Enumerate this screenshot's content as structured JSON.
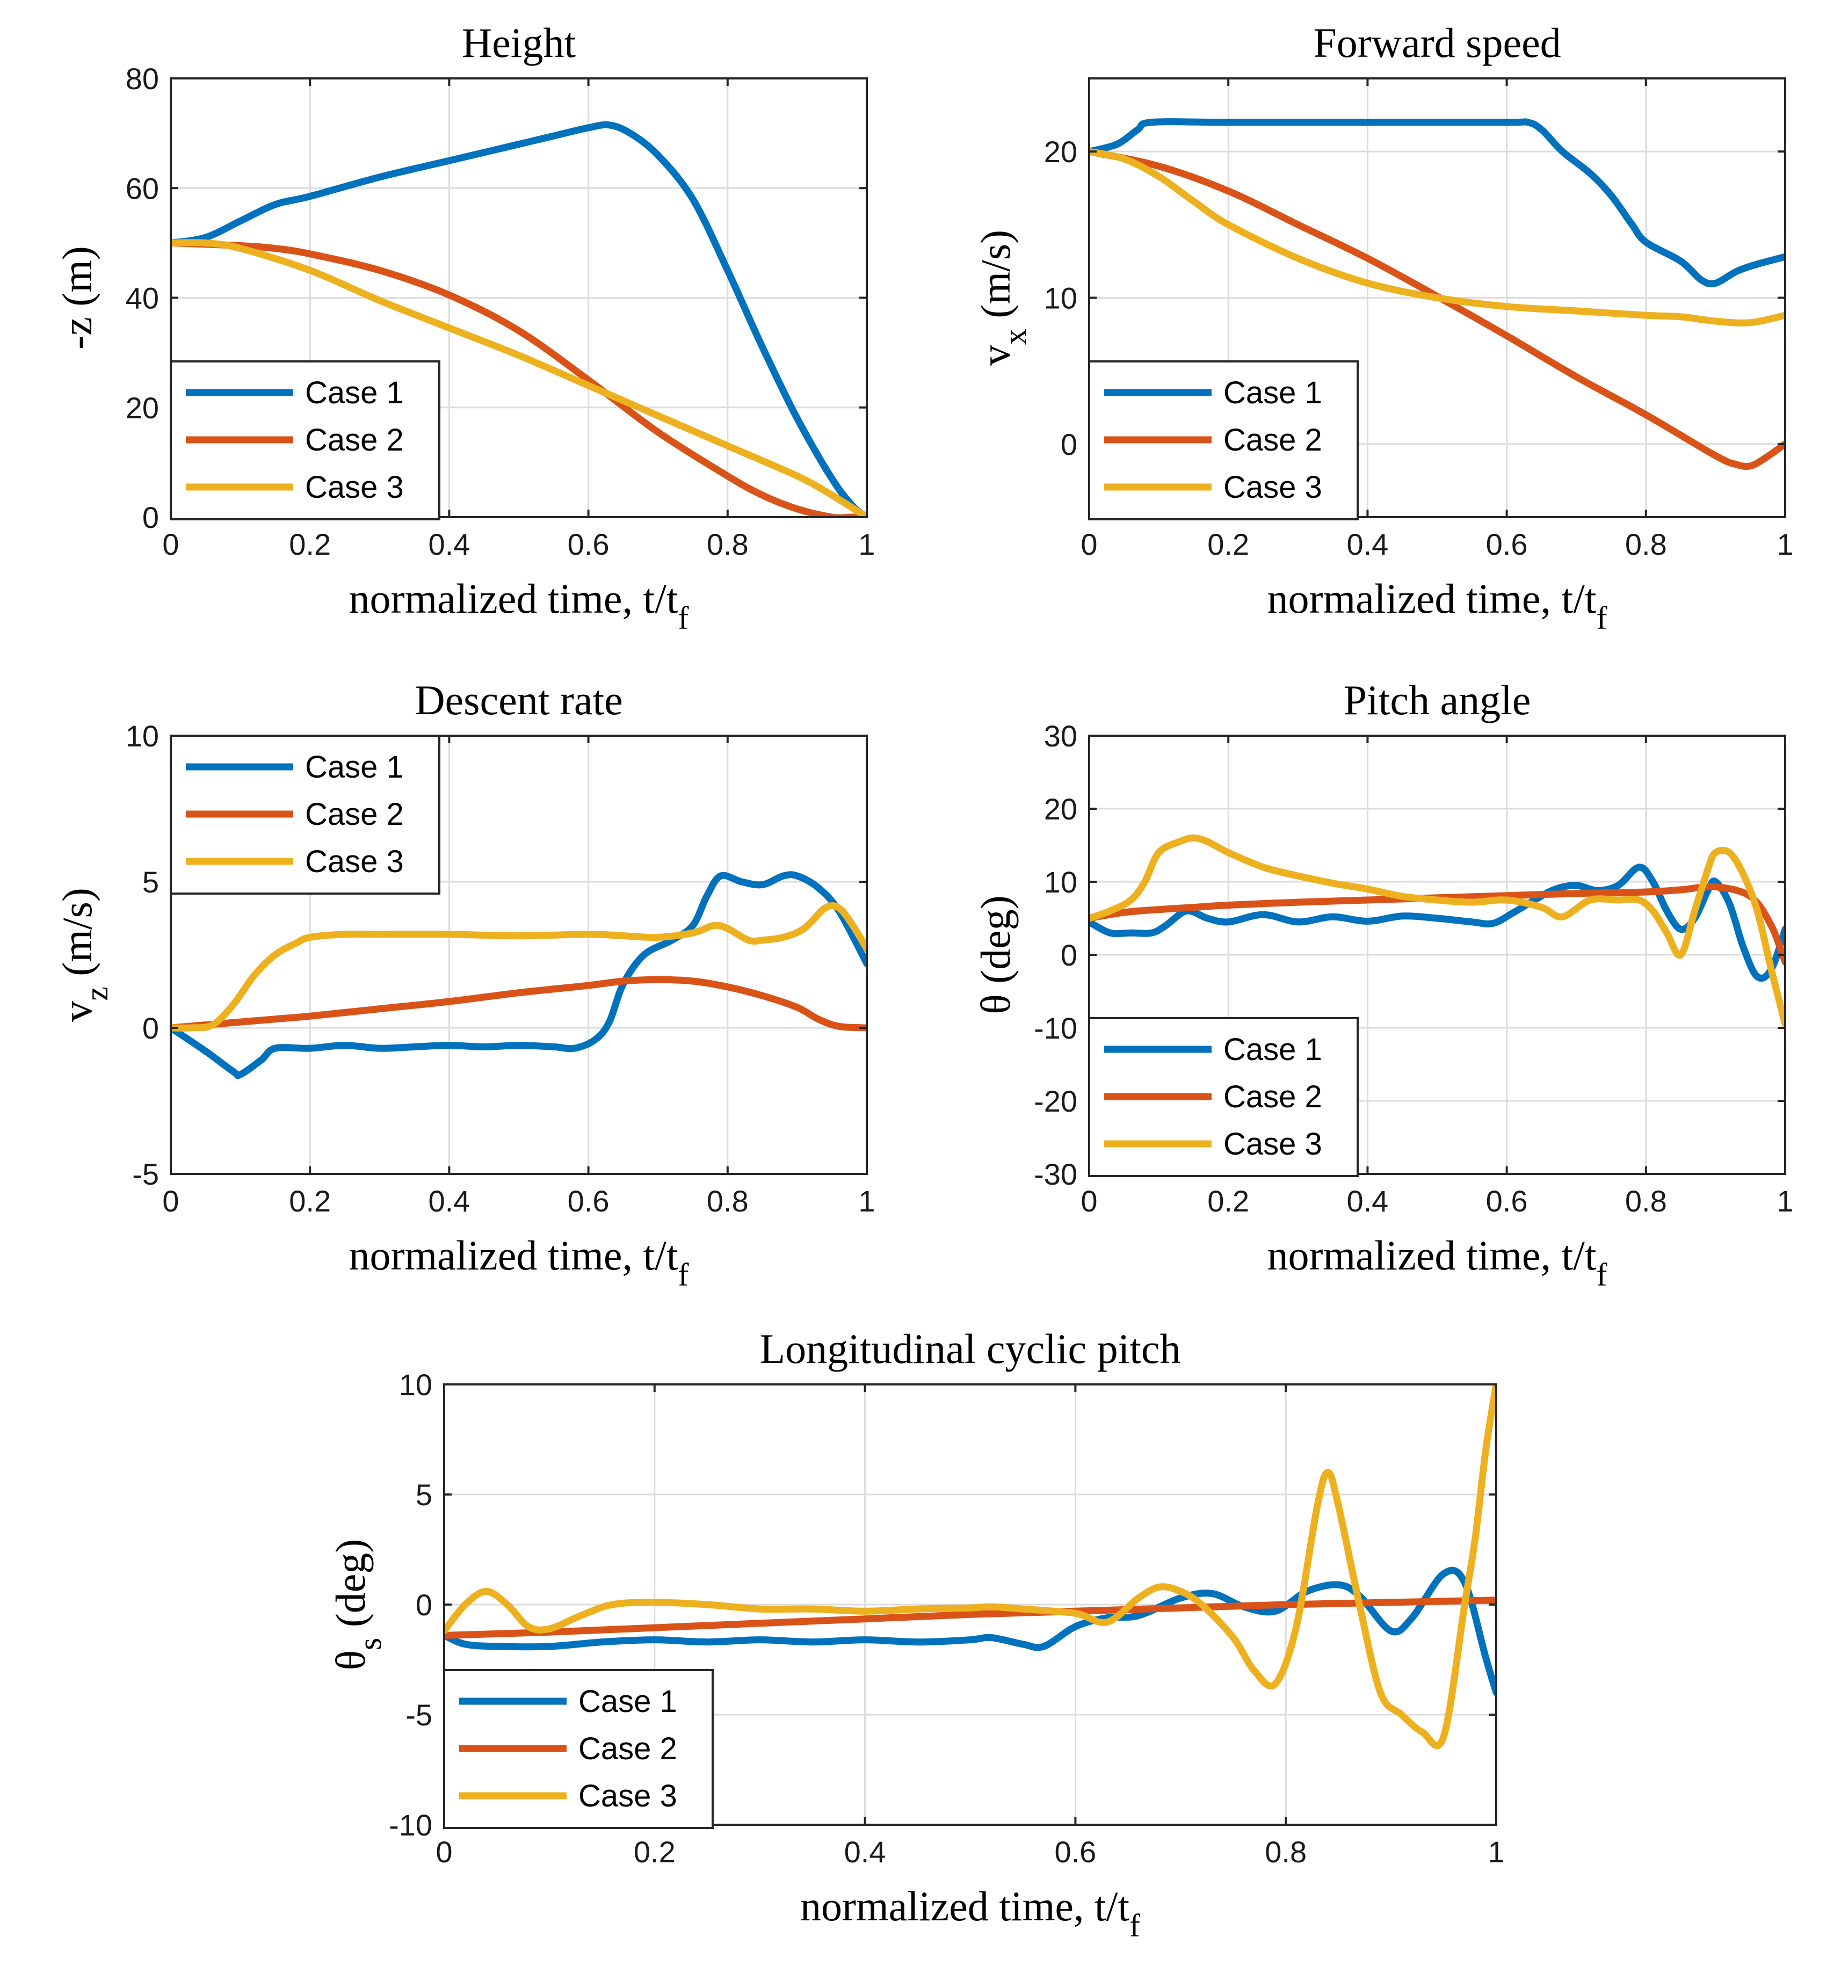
{
  "chart_data": [
    {
      "type": "line",
      "title": "Height",
      "xlabel": "normalized time, t/t",
      "xlabel_sub": "f",
      "ylabel": "-z (m)",
      "xlim": [
        0,
        1
      ],
      "ylim": [
        0,
        80
      ],
      "xticks": [
        "0",
        "0.2",
        "0.4",
        "0.6",
        "0.8",
        "1"
      ],
      "yticks": [
        "0",
        "20",
        "40",
        "60",
        "80"
      ],
      "legend": "bottom-left",
      "series": [
        {
          "name": "Case 1",
          "x": [
            0,
            0.05,
            0.1,
            0.15,
            0.2,
            0.3,
            0.4,
            0.5,
            0.55,
            0.6,
            0.63,
            0.66,
            0.7,
            0.75,
            0.8,
            0.85,
            0.9,
            0.95,
            0.98,
            1.0
          ],
          "y": [
            50,
            51,
            54,
            57,
            58.5,
            62,
            65,
            68,
            69.5,
            71,
            71.5,
            70,
            66,
            58,
            45,
            31,
            18,
            7,
            2,
            0
          ]
        },
        {
          "name": "Case 2",
          "x": [
            0,
            0.1,
            0.15,
            0.2,
            0.3,
            0.4,
            0.5,
            0.6,
            0.7,
            0.8,
            0.85,
            0.9,
            0.95,
            0.98,
            1.0
          ],
          "y": [
            50,
            49.5,
            49,
            48,
            45,
            40.5,
            34,
            25,
            15.5,
            7.5,
            4,
            1.5,
            0,
            0,
            0
          ]
        },
        {
          "name": "Case 3",
          "x": [
            0,
            0.05,
            0.1,
            0.2,
            0.3,
            0.4,
            0.5,
            0.6,
            0.7,
            0.8,
            0.9,
            0.95,
            1.0
          ],
          "y": [
            50,
            50,
            49,
            45,
            39.5,
            34.5,
            29.5,
            24,
            18.5,
            13,
            7.5,
            4,
            0
          ]
        }
      ]
    },
    {
      "type": "line",
      "title": "Forward speed",
      "xlabel": "normalized time, t/t",
      "xlabel_sub": "f",
      "ylabel": "v",
      "ylabel_sub": "x",
      "ylabel_suffix": "(m/s)",
      "xlim": [
        0,
        1
      ],
      "ylim": [
        -5,
        25
      ],
      "xticks": [
        "0",
        "0.2",
        "0.4",
        "0.6",
        "0.8",
        "1"
      ],
      "yticks": [
        "0",
        "10",
        "20"
      ],
      "legend": "bottom-left",
      "series": [
        {
          "name": "Case 1",
          "x": [
            0,
            0.04,
            0.07,
            0.09,
            0.2,
            0.4,
            0.6,
            0.63,
            0.65,
            0.68,
            0.72,
            0.75,
            0.78,
            0.8,
            0.85,
            0.88,
            0.9,
            0.93,
            0.96,
            1.0
          ],
          "y": [
            20,
            20.5,
            21.5,
            22,
            22,
            22,
            22,
            22,
            21.5,
            20,
            18.5,
            17,
            15,
            13.8,
            12.5,
            11.2,
            11,
            11.8,
            12.3,
            12.8
          ]
        },
        {
          "name": "Case 2",
          "x": [
            0,
            0.1,
            0.2,
            0.3,
            0.4,
            0.5,
            0.6,
            0.7,
            0.8,
            0.9,
            0.93,
            0.95,
            0.97,
            1.0
          ],
          "y": [
            20,
            19,
            17.3,
            15,
            12.7,
            10.1,
            7.4,
            4.6,
            2,
            -0.8,
            -1.4,
            -1.5,
            -1,
            0
          ]
        },
        {
          "name": "Case 3",
          "x": [
            0,
            0.05,
            0.1,
            0.15,
            0.2,
            0.3,
            0.4,
            0.5,
            0.6,
            0.7,
            0.8,
            0.85,
            0.9,
            0.95,
            1.0
          ],
          "y": [
            20,
            19.5,
            18.3,
            16.6,
            15,
            12.7,
            11,
            10,
            9.4,
            9.1,
            8.8,
            8.7,
            8.4,
            8.3,
            8.8
          ]
        }
      ]
    },
    {
      "type": "line",
      "title": "Descent rate",
      "xlabel": "normalized time, t/t",
      "xlabel_sub": "f",
      "ylabel": "v",
      "ylabel_sub": "z",
      "ylabel_suffix": "(m/s)",
      "xlim": [
        0,
        1
      ],
      "ylim": [
        -5,
        10
      ],
      "xticks": [
        "0",
        "0.2",
        "0.4",
        "0.6",
        "0.8",
        "1"
      ],
      "yticks": [
        "-5",
        "0",
        "5",
        "10"
      ],
      "legend": "top-left",
      "series": [
        {
          "name": "Case 1",
          "x": [
            0,
            0.05,
            0.09,
            0.1,
            0.13,
            0.15,
            0.2,
            0.25,
            0.3,
            0.35,
            0.4,
            0.45,
            0.5,
            0.55,
            0.58,
            0.61,
            0.63,
            0.65,
            0.68,
            0.72,
            0.75,
            0.77,
            0.79,
            0.82,
            0.85,
            0.88,
            0.9,
            0.93,
            0.96,
            1.0
          ],
          "y": [
            0,
            -0.8,
            -1.5,
            -1.6,
            -1.1,
            -0.7,
            -0.7,
            -0.6,
            -0.7,
            -0.65,
            -0.6,
            -0.65,
            -0.6,
            -0.65,
            -0.7,
            -0.4,
            0.2,
            1.5,
            2.5,
            3,
            3.5,
            4.5,
            5.2,
            5.0,
            4.9,
            5.2,
            5.2,
            4.8,
            4.0,
            2.2
          ]
        },
        {
          "name": "Case 2",
          "x": [
            0,
            0.05,
            0.1,
            0.15,
            0.2,
            0.3,
            0.4,
            0.5,
            0.6,
            0.65,
            0.7,
            0.75,
            0.8,
            0.85,
            0.9,
            0.93,
            0.96,
            1.0
          ],
          "y": [
            0,
            0.1,
            0.2,
            0.3,
            0.4,
            0.65,
            0.9,
            1.2,
            1.45,
            1.6,
            1.65,
            1.6,
            1.4,
            1.1,
            0.7,
            0.3,
            0.05,
            0
          ]
        },
        {
          "name": "Case 3",
          "x": [
            0,
            0.03,
            0.06,
            0.09,
            0.12,
            0.15,
            0.18,
            0.2,
            0.25,
            0.3,
            0.4,
            0.5,
            0.6,
            0.65,
            0.7,
            0.75,
            0.78,
            0.8,
            0.83,
            0.85,
            0.88,
            0.91,
            0.94,
            0.96,
            0.98,
            1.0
          ],
          "y": [
            0,
            0,
            0.1,
            0.8,
            1.8,
            2.5,
            2.9,
            3.1,
            3.2,
            3.2,
            3.2,
            3.15,
            3.2,
            3.15,
            3.1,
            3.25,
            3.5,
            3.4,
            3.0,
            3.0,
            3.1,
            3.4,
            4.1,
            4.1,
            3.5,
            2.7
          ]
        }
      ]
    },
    {
      "type": "line",
      "title": "Pitch angle",
      "xlabel": "normalized time, t/t",
      "xlabel_sub": "f",
      "ylabel": "θ (deg)",
      "xlim": [
        0,
        1
      ],
      "ylim": [
        -30,
        30
      ],
      "xticks": [
        "0",
        "0.2",
        "0.4",
        "0.6",
        "0.8",
        "1"
      ],
      "yticks": [
        "-30",
        "-20",
        "-10",
        "0",
        "10",
        "20",
        "30"
      ],
      "legend": "bottom-left",
      "series": [
        {
          "name": "Case 1",
          "x": [
            0,
            0.03,
            0.06,
            0.09,
            0.11,
            0.14,
            0.17,
            0.2,
            0.25,
            0.3,
            0.35,
            0.4,
            0.45,
            0.5,
            0.55,
            0.58,
            0.61,
            0.64,
            0.67,
            0.7,
            0.73,
            0.76,
            0.79,
            0.81,
            0.83,
            0.85,
            0.87,
            0.89,
            0.9,
            0.92,
            0.94,
            0.96,
            0.98,
            1.0
          ],
          "y": [
            4.5,
            3,
            3,
            3,
            4,
            6,
            5,
            4.5,
            5.5,
            4.5,
            5.2,
            4.6,
            5.3,
            5,
            4.5,
            4.3,
            5.8,
            7.5,
            9,
            9.5,
            8.8,
            9.5,
            12,
            10,
            6,
            3.5,
            5,
            9,
            10,
            7,
            1,
            -3,
            -2,
            3.5
          ]
        },
        {
          "name": "Case 2",
          "x": [
            0,
            0.05,
            0.1,
            0.15,
            0.2,
            0.3,
            0.4,
            0.5,
            0.6,
            0.7,
            0.8,
            0.85,
            0.9,
            0.95,
            0.98,
            1.0
          ],
          "y": [
            5,
            5.8,
            6.2,
            6.5,
            6.8,
            7.2,
            7.5,
            7.8,
            8.1,
            8.4,
            8.6,
            8.9,
            9.3,
            8,
            4,
            -1
          ]
        },
        {
          "name": "Case 3",
          "x": [
            0,
            0.03,
            0.06,
            0.08,
            0.1,
            0.13,
            0.15,
            0.17,
            0.2,
            0.25,
            0.3,
            0.35,
            0.4,
            0.45,
            0.5,
            0.55,
            0.6,
            0.65,
            0.68,
            0.72,
            0.76,
            0.79,
            0.81,
            0.83,
            0.85,
            0.87,
            0.89,
            0.9,
            0.92,
            0.94,
            0.96,
            0.98,
            1.0
          ],
          "y": [
            5,
            6,
            7.5,
            10,
            14,
            15.5,
            16,
            15.5,
            14,
            12,
            10.8,
            9.8,
            9,
            8,
            7.5,
            7.2,
            7.5,
            6.5,
            5.2,
            7.5,
            7.5,
            7.5,
            6,
            3,
            0,
            6,
            12,
            14,
            14,
            11,
            6,
            -2,
            -9.5
          ]
        }
      ]
    },
    {
      "type": "line",
      "title": "Longitudinal cyclic pitch",
      "xlabel": "normalized time, t/t",
      "xlabel_sub": "f",
      "ylabel": "θ",
      "ylabel_sub": "s",
      "ylabel_suffix": "(deg)",
      "xlim": [
        0,
        1
      ],
      "ylim": [
        -10,
        10
      ],
      "xticks": [
        "0",
        "0.2",
        "0.4",
        "0.6",
        "0.8",
        "1"
      ],
      "yticks": [
        "-10",
        "-5",
        "0",
        "5",
        "10"
      ],
      "legend": "bottom-left",
      "series": [
        {
          "name": "Case 1",
          "x": [
            0,
            0.02,
            0.05,
            0.1,
            0.15,
            0.2,
            0.25,
            0.3,
            0.35,
            0.4,
            0.45,
            0.5,
            0.52,
            0.55,
            0.57,
            0.6,
            0.63,
            0.66,
            0.7,
            0.73,
            0.76,
            0.79,
            0.82,
            0.85,
            0.87,
            0.9,
            0.92,
            0.95,
            0.97,
            0.99,
            1.0
          ],
          "y": [
            -1.4,
            -1.8,
            -1.9,
            -1.9,
            -1.7,
            -1.6,
            -1.7,
            -1.6,
            -1.7,
            -1.6,
            -1.7,
            -1.6,
            -1.5,
            -1.8,
            -1.9,
            -1,
            -0.6,
            -0.5,
            0.3,
            0.5,
            -0.1,
            -0.3,
            0.6,
            0.9,
            0.4,
            -1.2,
            -0.6,
            1.4,
            1,
            -2.4,
            -4
          ]
        },
        {
          "name": "Case 2",
          "x": [
            0,
            0.1,
            0.2,
            0.3,
            0.4,
            0.5,
            0.6,
            0.7,
            0.8,
            0.9,
            1.0
          ],
          "y": [
            -1.4,
            -1.25,
            -1.05,
            -0.85,
            -0.65,
            -0.45,
            -0.3,
            -0.15,
            0,
            0.1,
            0.2
          ]
        },
        {
          "name": "Case 3",
          "x": [
            0,
            0.02,
            0.04,
            0.06,
            0.08,
            0.1,
            0.13,
            0.16,
            0.2,
            0.25,
            0.3,
            0.35,
            0.4,
            0.45,
            0.5,
            0.52,
            0.55,
            0.6,
            0.63,
            0.66,
            0.68,
            0.7,
            0.72,
            0.75,
            0.77,
            0.79,
            0.81,
            0.83,
            0.84,
            0.85,
            0.87,
            0.89,
            0.91,
            0.93,
            0.95,
            0.97,
            0.98,
            0.99,
            1.0
          ],
          "y": [
            -1.2,
            0,
            0.6,
            0,
            -1,
            -1.1,
            -0.5,
            0,
            0.1,
            0,
            -0.2,
            -0.2,
            -0.3,
            -0.2,
            -0.15,
            -0.1,
            -0.2,
            -0.4,
            -0.8,
            0.3,
            0.8,
            0.6,
            0,
            -1.5,
            -3,
            -3.6,
            -1,
            4.5,
            6,
            4.5,
            0,
            -4,
            -5,
            -5.8,
            -6,
            0,
            3,
            7,
            10
          ]
        }
      ]
    }
  ],
  "colors": {
    "case1": "#0072bd",
    "case2": "#d95319",
    "case3": "#edb120"
  }
}
